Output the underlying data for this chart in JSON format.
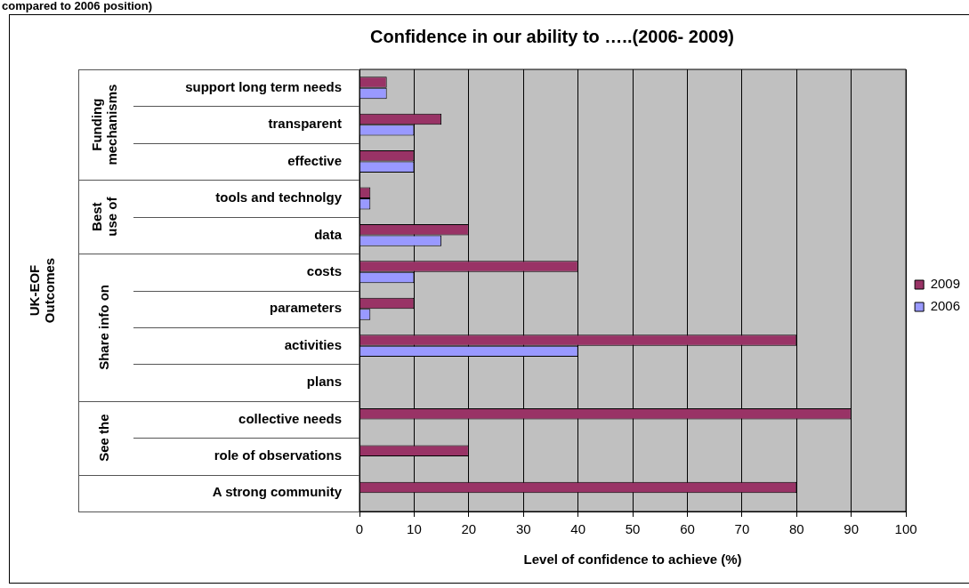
{
  "chart_data": {
    "type": "bar",
    "orientation": "horizontal",
    "title": "Confidence in our ability to …..(2006- 2009)",
    "xlabel": "Level of confidence to achieve (%)",
    "categories": [
      "support long term needs",
      "transparent",
      "effective",
      "tools and technolgy",
      "data",
      "costs",
      "parameters",
      "activities",
      "plans",
      "collective needs",
      "role of observations",
      "A strong community"
    ],
    "series": [
      {
        "name": "2009",
        "color": "#993366",
        "values": [
          5,
          15,
          10,
          2,
          20,
          40,
          10,
          80,
          null,
          90,
          20,
          80
        ]
      },
      {
        "name": "2006",
        "color": "#9999ff",
        "values": [
          5,
          10,
          10,
          2,
          15,
          10,
          2,
          40,
          null,
          null,
          null,
          null
        ]
      }
    ],
    "xlim": [
      0,
      100
    ],
    "xticks": [
      0,
      10,
      20,
      30,
      40,
      50,
      60,
      70,
      80,
      90,
      100
    ],
    "grid": "x",
    "legend": "right",
    "annotations": [
      "compared to 2006 position)",
      "UK-EOF Outcomes",
      "Funding mechanisms",
      "Best use of",
      "Share info on",
      "See the"
    ]
  }
}
